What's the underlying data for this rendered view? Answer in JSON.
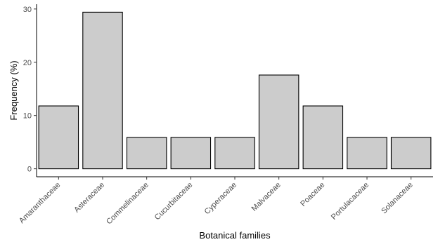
{
  "chart_data": {
    "type": "bar",
    "title": "",
    "xlabel": "Botanical families",
    "ylabel": "Frequency (%)",
    "categories": [
      "Amaranthaceae",
      "Asteraceae",
      "Commelinaceae",
      "Cucurbitaceae",
      "Cyperaceae",
      "Malvaceae",
      "Poaceae",
      "Portulacaceae",
      "Solanaceae"
    ],
    "values": [
      11.8,
      29.4,
      5.9,
      5.9,
      5.9,
      17.6,
      11.8,
      5.9,
      5.9
    ],
    "yticks": [
      0,
      10,
      20,
      30
    ],
    "ylim": [
      -1.5,
      30.9
    ],
    "grid": false,
    "legend": "none",
    "bar_color": "#cccccc",
    "bar_edge_color": "#000000"
  }
}
